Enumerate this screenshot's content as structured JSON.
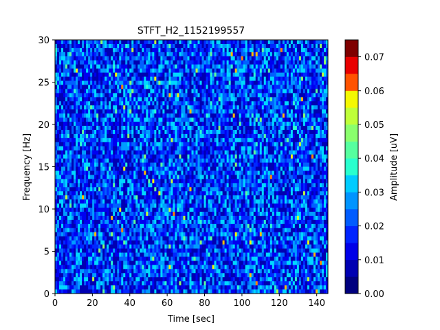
{
  "chart_data": {
    "type": "heatmap",
    "title": "STFT_H2_1152199557",
    "xlabel": "Time [sec]",
    "ylabel": "Frequency [Hz]",
    "xlim": [
      0,
      146
    ],
    "ylim": [
      0,
      30
    ],
    "x_ticks": [
      "0",
      "20",
      "40",
      "60",
      "80",
      "100",
      "120",
      "140"
    ],
    "y_ticks": [
      "0",
      "5",
      "10",
      "15",
      "20",
      "25",
      "30"
    ],
    "grid": false,
    "colorbar": {
      "label": "Amplitude [uV]",
      "range": [
        0.0,
        0.075
      ],
      "ticks": [
        "0.00",
        "0.01",
        "0.02",
        "0.03",
        "0.04",
        "0.05",
        "0.06",
        "0.07"
      ],
      "levels": 15,
      "colormap": "jet",
      "colors": [
        "#00007f",
        "#0000b2",
        "#0000e8",
        "#0024ff",
        "#005cff",
        "#0094ff",
        "#00ccff",
        "#29ffce",
        "#56ff9f",
        "#8aff6d",
        "#bfff39",
        "#f4f802",
        "#ffc000",
        "#ff8a00",
        "#ff5300",
        "#e80000",
        "#b20000",
        "#7f0000"
      ]
    },
    "note_values": "Dense spectrogram of noise-like amplitudes, mostly 0.01-0.035 uV with sparse peaks up to ~0.07 uV"
  }
}
